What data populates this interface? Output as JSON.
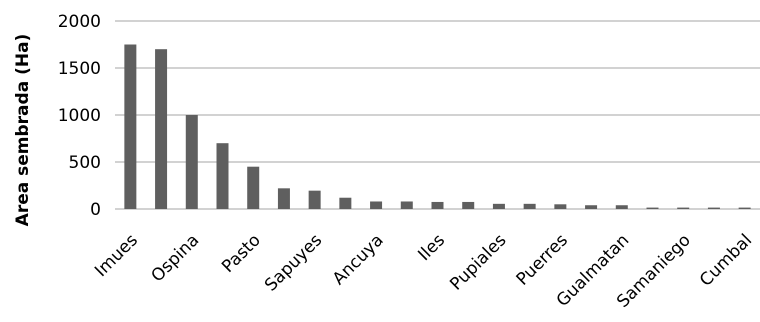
{
  "chart_data": {
    "type": "bar",
    "title": "",
    "xlabel": "",
    "ylabel": "Area sembrada (Ha)",
    "ylim": [
      0,
      2000
    ],
    "yticks": [
      0,
      500,
      1000,
      1500,
      2000
    ],
    "grid": true,
    "legend": "none",
    "bar_color": "#5f5f5f",
    "grid_color": "#a6a6a6",
    "categories": [
      "Imues",
      "",
      "Ospina",
      "",
      "Pasto",
      "",
      "Sapuyes",
      "",
      "Ancuya",
      "",
      "Iles",
      "",
      "Pupiales",
      "",
      "Puerres",
      "",
      "Gualmatan",
      "",
      "Samaniego",
      "",
      "Cumbal"
    ],
    "values": [
      1750,
      1700,
      1000,
      700,
      450,
      220,
      195,
      120,
      80,
      80,
      75,
      75,
      55,
      55,
      50,
      40,
      40,
      15,
      15,
      15,
      15
    ]
  }
}
